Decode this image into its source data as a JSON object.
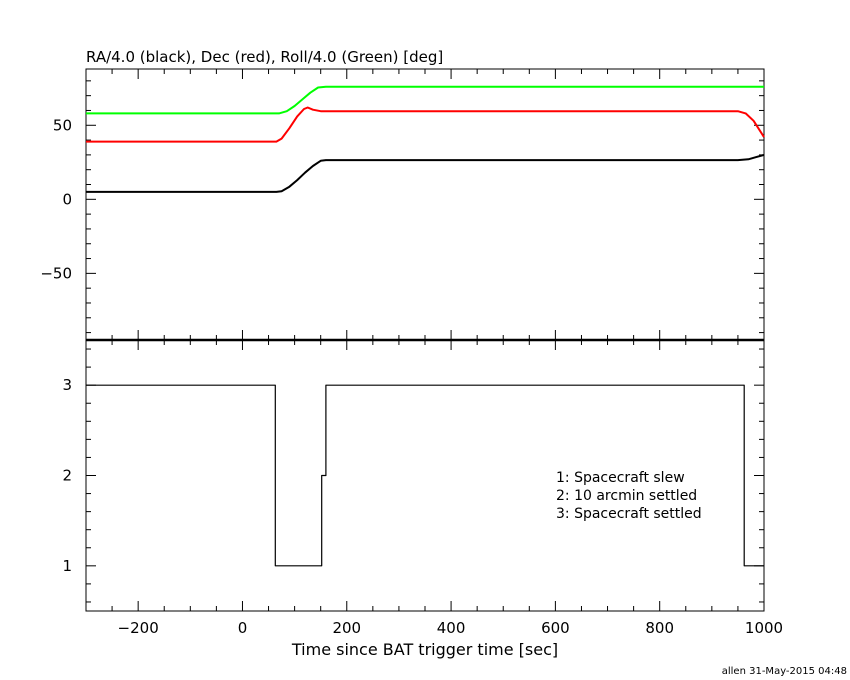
{
  "chart_data": [
    {
      "type": "line",
      "title": "RA/4.0 (black), Dec (red), Roll/4.0 (Green) [deg]",
      "xlim": [
        -300,
        1000
      ],
      "ylim": [
        -95,
        88
      ],
      "y_ticks": [
        -50,
        0,
        50
      ],
      "grid": false,
      "series": [
        {
          "color": "#000000",
          "points": [
            [
              -300,
              5
            ],
            [
              65,
              5
            ],
            [
              75,
              5.5
            ],
            [
              90,
              8.5
            ],
            [
              105,
              13
            ],
            [
              120,
              18
            ],
            [
              135,
              22.5
            ],
            [
              150,
              26
            ],
            [
              160,
              26.5
            ],
            [
              340,
              26.5
            ],
            [
              950,
              26.5
            ],
            [
              970,
              27
            ],
            [
              985,
              28.5
            ],
            [
              1000,
              30
            ]
          ]
        },
        {
          "color": "#ff0000",
          "points": [
            [
              -300,
              39
            ],
            [
              65,
              39
            ],
            [
              75,
              41
            ],
            [
              90,
              48
            ],
            [
              105,
              56
            ],
            [
              118,
              61
            ],
            [
              125,
              62
            ],
            [
              135,
              60.5
            ],
            [
              150,
              59.5
            ],
            [
              340,
              59.5
            ],
            [
              950,
              59.5
            ],
            [
              965,
              58
            ],
            [
              980,
              53
            ],
            [
              1000,
              42
            ]
          ]
        },
        {
          "color": "#00ff00",
          "points": [
            [
              -300,
              58
            ],
            [
              70,
              58
            ],
            [
              85,
              59.5
            ],
            [
              100,
              63
            ],
            [
              115,
              67.5
            ],
            [
              130,
              72
            ],
            [
              145,
              75.5
            ],
            [
              160,
              76
            ],
            [
              340,
              76
            ],
            [
              1000,
              76
            ]
          ]
        }
      ]
    },
    {
      "type": "line",
      "xlabel": "Time since BAT trigger time [sec]",
      "xlim": [
        -300,
        1000
      ],
      "ylim": [
        0.5,
        3.5
      ],
      "x_ticks": [
        -200,
        0,
        200,
        400,
        600,
        800,
        1000
      ],
      "y_ticks": [
        1,
        2,
        3
      ],
      "grid": false,
      "step": true,
      "series": [
        {
          "color": "#000000",
          "points": [
            [
              -300,
              3
            ],
            [
              63,
              3
            ],
            [
              63,
              1
            ],
            [
              152,
              1
            ],
            [
              152,
              2
            ],
            [
              160,
              2
            ],
            [
              160,
              3
            ],
            [
              962,
              3
            ],
            [
              962,
              1
            ],
            [
              1000,
              1
            ]
          ]
        }
      ],
      "legend": {
        "placement": "bottom-right",
        "entries": [
          "1: Spacecraft slew",
          "2: 10 arcmin settled",
          "3: Spacecraft settled"
        ]
      }
    }
  ],
  "footer": "allen 31-May-2015 04:48"
}
